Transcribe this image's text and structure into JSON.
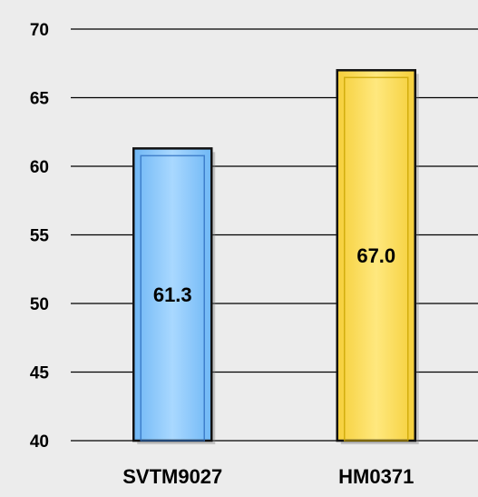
{
  "chart_data": {
    "type": "bar",
    "title": "",
    "xlabel": "",
    "ylabel": "",
    "categories": [
      "SVTM9027",
      "HM0371"
    ],
    "values": [
      61.3,
      67.0
    ],
    "value_labels": [
      "61.3",
      "67.0"
    ],
    "ylim": [
      40,
      70
    ],
    "yticks": [
      40,
      45,
      50,
      55,
      60,
      65,
      70
    ],
    "ytick_labels": [
      "40",
      "45",
      "50",
      "55",
      "60",
      "65",
      "70"
    ],
    "grid": true,
    "legend": "none",
    "colors": {
      "bars": [
        "#9fd0ff",
        "#ffe271"
      ],
      "bar_edges": [
        "#2f6fc0",
        "#c9a400"
      ],
      "background": "#ececec",
      "gridline": "#000000"
    }
  }
}
